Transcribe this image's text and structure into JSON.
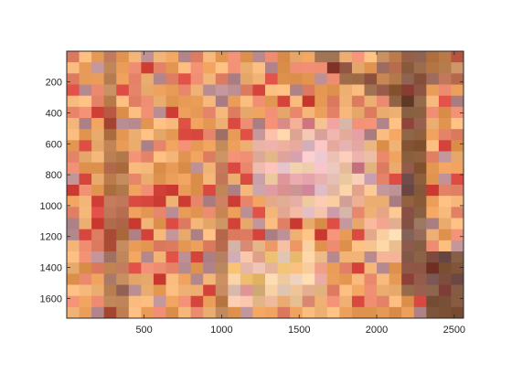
{
  "chart_data": {
    "type": "heatmap",
    "title": "",
    "xlabel": "",
    "ylabel": "",
    "xlim": [
      1,
      2560
    ],
    "ylim": [
      1,
      1728
    ],
    "y_direction": "reverse",
    "x_ticks": [
      500,
      1000,
      1500,
      2000,
      2500
    ],
    "x_tick_labels": [
      "500",
      "1000",
      "1500",
      "2000",
      "2500"
    ],
    "y_ticks": [
      200,
      400,
      600,
      800,
      1000,
      1200,
      1400,
      1600
    ],
    "y_tick_labels": [
      "200",
      "400",
      "600",
      "800",
      "1000",
      "1200",
      "1400",
      "1600"
    ],
    "grid": false,
    "legend": "none",
    "pixel_grid": {
      "columns": 32,
      "rows": 24
    },
    "palette": {
      "orange": "#e79a55",
      "light_orange": "#f2b577",
      "salmon": "#e8876b",
      "red": "#d6453b",
      "dark_brown": "#4d2f26",
      "brown": "#8f5a3c",
      "pink": "#e7b0c4",
      "light_pink": "#f2d5df",
      "lavender": "#cfa6c9",
      "cream": "#f6e3c4",
      "yellow": "#f2cf7a",
      "mauve": "#b78a8f"
    }
  }
}
